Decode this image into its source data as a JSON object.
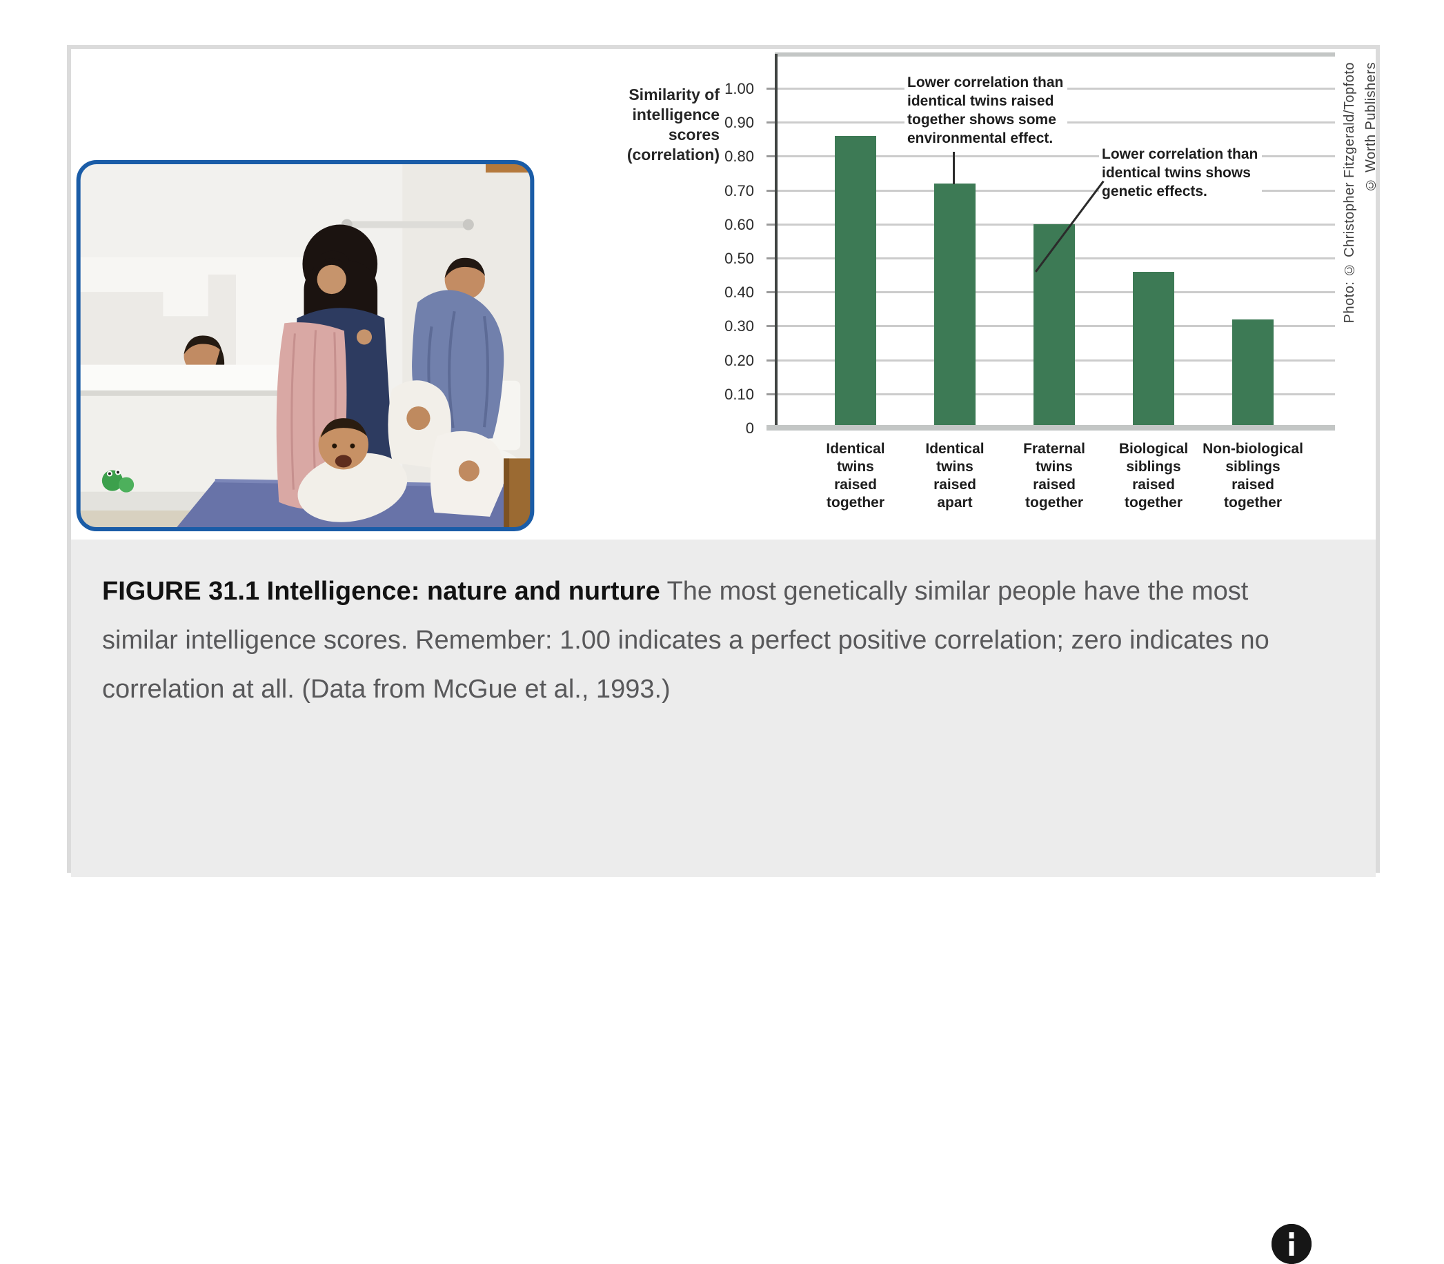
{
  "figure_card": {
    "photo": {
      "description": "A mother drying and bathing five young children in a bathroom: one child in the bathtub, a toddler wrapped in a blue towel sitting on the toilet, and babies in white towels on a blue rug",
      "credit_line_1": "Photo: © Christopher Fitzgerald/Topfoto",
      "credit_line_2": "© Worth Publishers"
    },
    "caption": {
      "label": "FIGURE 31.1 Intelligence: nature and nurture",
      "body": " The most genetically similar people have the most similar intelligence scores. Remember: 1.00 indicates a perfect positive correlation; zero indicates no correlation at all. (Data from McGue et al., 1993.)"
    },
    "info_button": {
      "icon": "info-icon",
      "glyph": "i"
    }
  },
  "chart_data": {
    "type": "bar",
    "title": "",
    "ylabel": "Similarity of\nintelligence\nscores\n(correlation)",
    "xlabel": "",
    "categories": [
      "Identical\ntwins\nraised\ntogether",
      "Identical\ntwins\nraised\napart",
      "Fraternal\ntwins\nraised\ntogether",
      "Biological\nsiblings\nraised\ntogether",
      "Non-biological\nsiblings\nraised\ntogether"
    ],
    "values": [
      0.86,
      0.72,
      0.6,
      0.46,
      0.32
    ],
    "ylim": [
      0,
      1.1
    ],
    "y_ticks": [
      {
        "label": "1.00",
        "v": 1.0
      },
      {
        "label": "0.90",
        "v": 0.9
      },
      {
        "label": "0.80",
        "v": 0.8
      },
      {
        "label": "0.70",
        "v": 0.7
      },
      {
        "label": "0.60",
        "v": 0.6
      },
      {
        "label": "0.50",
        "v": 0.5
      },
      {
        "label": "0.40",
        "v": 0.4
      },
      {
        "label": "0.30",
        "v": 0.3
      },
      {
        "label": "0.20",
        "v": 0.2
      },
      {
        "label": "0.10",
        "v": 0.1
      },
      {
        "label": "0",
        "v": 0
      }
    ],
    "grid": true,
    "bar_color": "#3d7a55",
    "gridline_color": "#cccccc",
    "annotations": [
      {
        "text": "Lower correlation than\nidentical twins raised\ntogether shows some\nenvironmental effect.",
        "points_to": "Identical twins raised apart"
      },
      {
        "text": "Lower correlation than\nidentical twins shows\ngenetic effects.",
        "points_to": "Fraternal twins raised together"
      }
    ]
  }
}
